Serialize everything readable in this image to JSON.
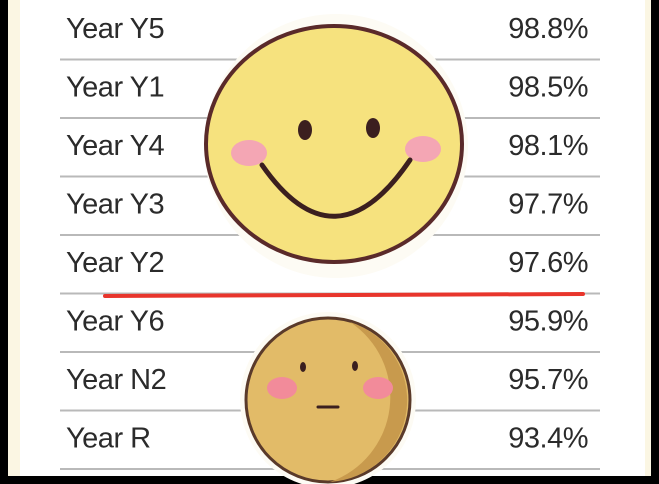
{
  "table": {
    "rows": [
      [
        "Year Y5",
        "98.8%"
      ],
      [
        "Year Y1",
        "98.5%"
      ],
      [
        "Year Y4",
        "98.1%"
      ],
      [
        "Year Y3",
        "97.7%"
      ],
      [
        "Year Y2",
        "97.6%"
      ],
      [
        "Year Y6",
        "95.9%"
      ],
      [
        "Year N2",
        "95.7%"
      ],
      [
        "Year R",
        "93.4%"
      ]
    ]
  }
}
